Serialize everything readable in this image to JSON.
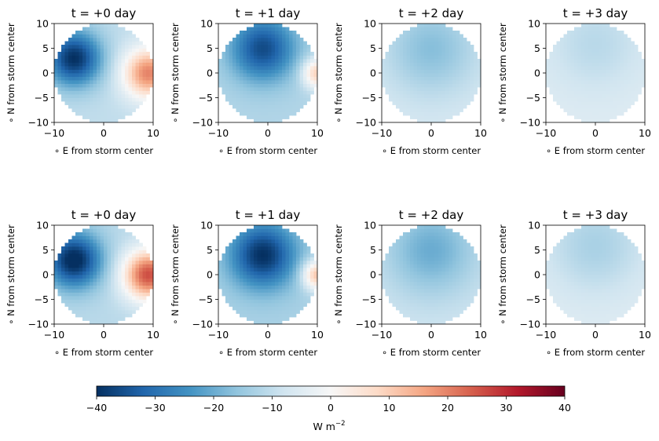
{
  "chart_data": {
    "type": "heatmap",
    "panel_titles": [
      "t = +0 day",
      "t = +1 day",
      "t = +2 day",
      "t = +3 day"
    ],
    "rows": 2,
    "xlabel": "∘ E from storm center",
    "ylabel": "∘ N from storm center",
    "xlim": [
      -10,
      10
    ],
    "ylim": [
      -10,
      10
    ],
    "xticks": [
      "−10",
      "0",
      "10"
    ],
    "yticks": [
      "10",
      "5",
      "0",
      "−5",
      "−10"
    ],
    "mask": "circle radius 10",
    "grid": false,
    "colormap": "RdBu_r",
    "colorbar": {
      "range": [
        -40,
        40
      ],
      "ticks": [
        "−40",
        "−30",
        "−20",
        "−10",
        "0",
        "10",
        "20",
        "30",
        "40"
      ],
      "label_main": "W m",
      "label_sup": "−2",
      "orientation": "horizontal"
    },
    "panels": [
      {
        "row": 0,
        "day": 0,
        "cold_center": [
          -6,
          3
        ],
        "cold_value": -40,
        "cold_radius": 5.5,
        "warm_center": [
          9,
          0
        ],
        "warm_value": 20,
        "warm_radius": 5,
        "background": -10
      },
      {
        "row": 0,
        "day": 1,
        "cold_center": [
          -1,
          5
        ],
        "cold_value": -36,
        "cold_radius": 6.5,
        "warm_center": [
          10,
          0
        ],
        "warm_value": 10,
        "warm_radius": 3,
        "background": -12
      },
      {
        "row": 0,
        "day": 2,
        "cold_center": [
          0,
          5
        ],
        "cold_value": -17,
        "cold_radius": 9,
        "background": -7
      },
      {
        "row": 0,
        "day": 3,
        "cold_center": [
          0,
          6
        ],
        "cold_value": -11,
        "cold_radius": 10,
        "background": -5
      },
      {
        "row": 1,
        "day": 0,
        "cold_center": [
          -6,
          3
        ],
        "cold_value": -42,
        "cold_radius": 5.5,
        "warm_center": [
          9,
          0
        ],
        "warm_value": 26,
        "warm_radius": 5,
        "background": -11
      },
      {
        "row": 1,
        "day": 1,
        "cold_center": [
          -1,
          4
        ],
        "cold_value": -40,
        "cold_radius": 6.5,
        "warm_center": [
          10,
          0
        ],
        "warm_value": 12,
        "warm_radius": 3,
        "background": -13
      },
      {
        "row": 1,
        "day": 2,
        "cold_center": [
          0,
          5
        ],
        "cold_value": -20,
        "cold_radius": 9,
        "background": -8
      },
      {
        "row": 1,
        "day": 3,
        "cold_center": [
          0,
          6
        ],
        "cold_value": -13,
        "cold_radius": 10,
        "background": -5
      }
    ]
  }
}
